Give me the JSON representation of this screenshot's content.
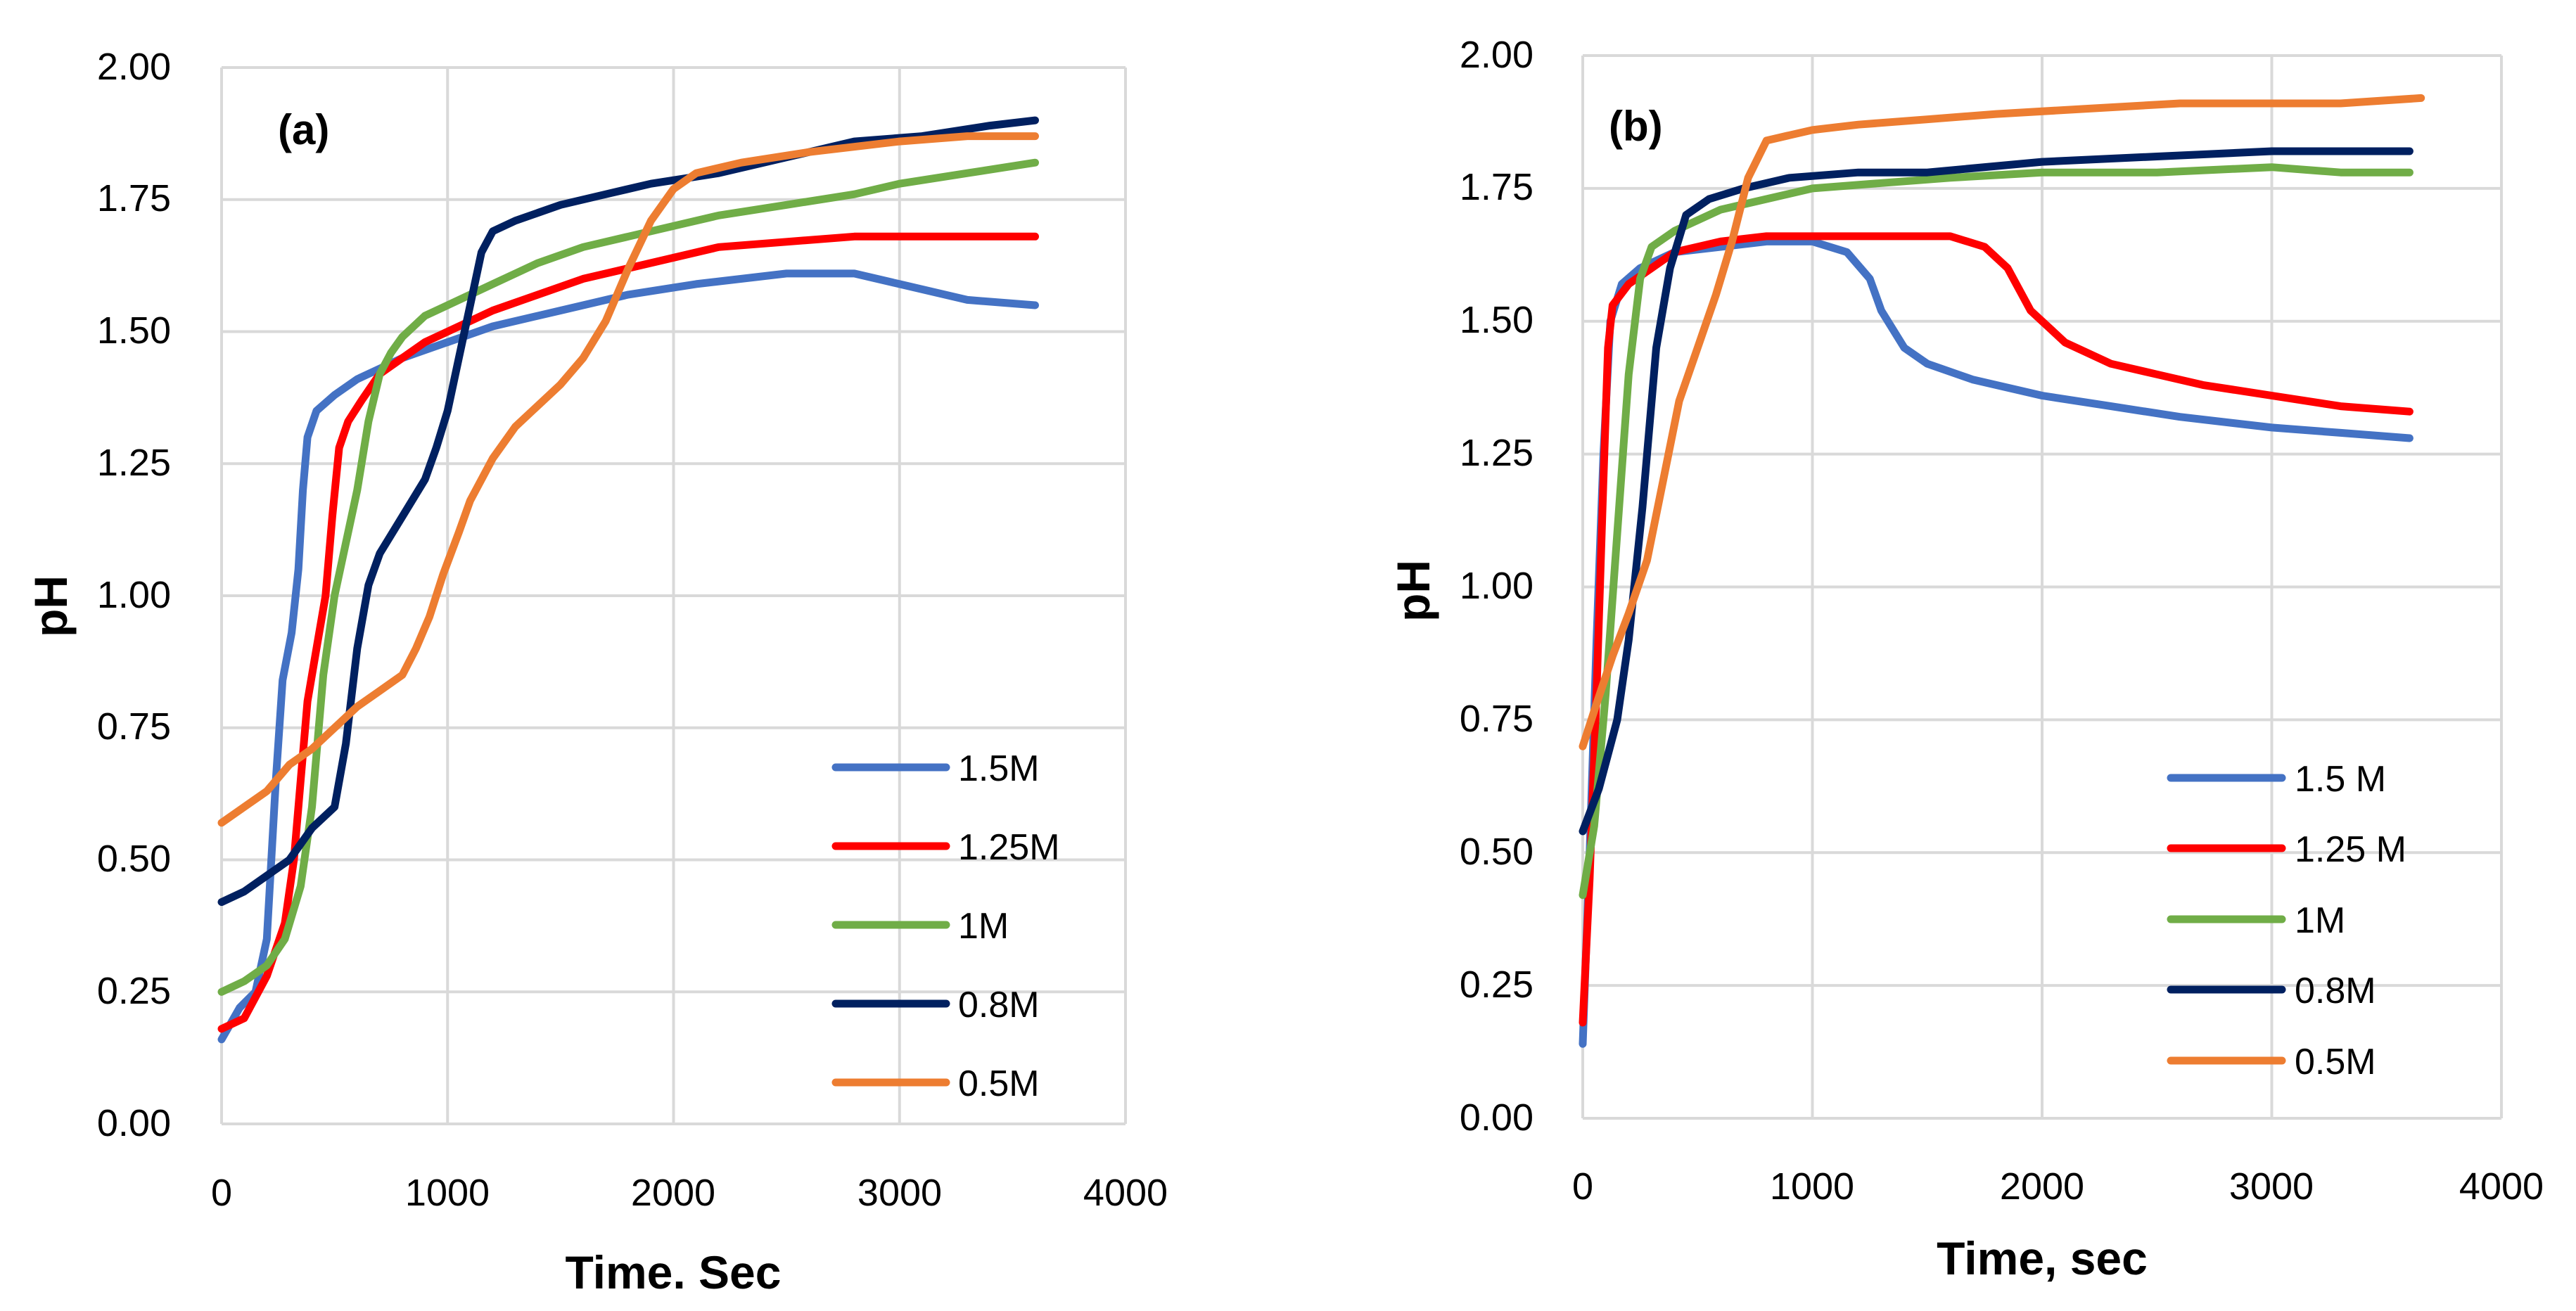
{
  "chart_data": [
    {
      "type": "line",
      "panel_label": "(a)",
      "xlabel": "Time. Sec",
      "ylabel": "pH",
      "xlim": [
        0,
        4000
      ],
      "ylim": [
        0,
        2
      ],
      "x_ticks": [
        "0",
        "1000",
        "2000",
        "3000",
        "4000"
      ],
      "y_ticks": [
        "0.00",
        "0.25",
        "0.50",
        "0.75",
        "1.00",
        "1.25",
        "1.50",
        "1.75",
        "2.00"
      ],
      "grid": true,
      "legend_position": "bottom-right",
      "series": [
        {
          "name": "1.5M",
          "color": "#4472c4",
          "points": [
            [
              0,
              0.16
            ],
            [
              80,
              0.22
            ],
            [
              150,
              0.25
            ],
            [
              200,
              0.35
            ],
            [
              240,
              0.65
            ],
            [
              270,
              0.84
            ],
            [
              310,
              0.93
            ],
            [
              340,
              1.05
            ],
            [
              360,
              1.2
            ],
            [
              380,
              1.3
            ],
            [
              420,
              1.35
            ],
            [
              500,
              1.38
            ],
            [
              600,
              1.41
            ],
            [
              700,
              1.43
            ],
            [
              800,
              1.45
            ],
            [
              1000,
              1.48
            ],
            [
              1200,
              1.51
            ],
            [
              1500,
              1.54
            ],
            [
              1800,
              1.57
            ],
            [
              2100,
              1.59
            ],
            [
              2500,
              1.61
            ],
            [
              2800,
              1.61
            ],
            [
              3000,
              1.59
            ],
            [
              3300,
              1.56
            ],
            [
              3600,
              1.55
            ]
          ]
        },
        {
          "name": "1.25M",
          "color": "#ff0000",
          "points": [
            [
              0,
              0.18
            ],
            [
              100,
              0.2
            ],
            [
              200,
              0.28
            ],
            [
              280,
              0.38
            ],
            [
              320,
              0.5
            ],
            [
              350,
              0.65
            ],
            [
              380,
              0.8
            ],
            [
              420,
              0.9
            ],
            [
              460,
              1.0
            ],
            [
              490,
              1.15
            ],
            [
              520,
              1.28
            ],
            [
              560,
              1.33
            ],
            [
              620,
              1.37
            ],
            [
              700,
              1.42
            ],
            [
              800,
              1.45
            ],
            [
              900,
              1.48
            ],
            [
              1000,
              1.5
            ],
            [
              1200,
              1.54
            ],
            [
              1400,
              1.57
            ],
            [
              1600,
              1.6
            ],
            [
              1800,
              1.62
            ],
            [
              2000,
              1.64
            ],
            [
              2200,
              1.66
            ],
            [
              2500,
              1.67
            ],
            [
              2800,
              1.68
            ],
            [
              3200,
              1.68
            ],
            [
              3600,
              1.68
            ]
          ]
        },
        {
          "name": "1M",
          "color": "#70ad47",
          "points": [
            [
              0,
              0.25
            ],
            [
              100,
              0.27
            ],
            [
              200,
              0.3
            ],
            [
              280,
              0.35
            ],
            [
              350,
              0.45
            ],
            [
              400,
              0.6
            ],
            [
              450,
              0.85
            ],
            [
              500,
              1.0
            ],
            [
              550,
              1.1
            ],
            [
              600,
              1.2
            ],
            [
              650,
              1.33
            ],
            [
              700,
              1.42
            ],
            [
              750,
              1.46
            ],
            [
              800,
              1.49
            ],
            [
              900,
              1.53
            ],
            [
              1000,
              1.55
            ],
            [
              1200,
              1.59
            ],
            [
              1400,
              1.63
            ],
            [
              1600,
              1.66
            ],
            [
              1800,
              1.68
            ],
            [
              2000,
              1.7
            ],
            [
              2200,
              1.72
            ],
            [
              2500,
              1.74
            ],
            [
              2800,
              1.76
            ],
            [
              3000,
              1.78
            ],
            [
              3300,
              1.8
            ],
            [
              3600,
              1.82
            ]
          ]
        },
        {
          "name": "0.8M",
          "color": "#002060",
          "points": [
            [
              0,
              0.42
            ],
            [
              100,
              0.44
            ],
            [
              200,
              0.47
            ],
            [
              300,
              0.5
            ],
            [
              400,
              0.56
            ],
            [
              500,
              0.6
            ],
            [
              550,
              0.72
            ],
            [
              600,
              0.9
            ],
            [
              650,
              1.02
            ],
            [
              700,
              1.08
            ],
            [
              800,
              1.15
            ],
            [
              900,
              1.22
            ],
            [
              950,
              1.28
            ],
            [
              1000,
              1.35
            ],
            [
              1050,
              1.45
            ],
            [
              1100,
              1.55
            ],
            [
              1150,
              1.65
            ],
            [
              1200,
              1.69
            ],
            [
              1300,
              1.71
            ],
            [
              1500,
              1.74
            ],
            [
              1700,
              1.76
            ],
            [
              1900,
              1.78
            ],
            [
              2200,
              1.8
            ],
            [
              2500,
              1.83
            ],
            [
              2800,
              1.86
            ],
            [
              3100,
              1.87
            ],
            [
              3400,
              1.89
            ],
            [
              3600,
              1.9
            ]
          ]
        },
        {
          "name": "0.5M",
          "color": "#ed7d31",
          "points": [
            [
              0,
              0.57
            ],
            [
              100,
              0.6
            ],
            [
              200,
              0.63
            ],
            [
              300,
              0.68
            ],
            [
              400,
              0.71
            ],
            [
              500,
              0.75
            ],
            [
              600,
              0.79
            ],
            [
              700,
              0.82
            ],
            [
              800,
              0.85
            ],
            [
              860,
              0.9
            ],
            [
              920,
              0.96
            ],
            [
              980,
              1.04
            ],
            [
              1050,
              1.12
            ],
            [
              1100,
              1.18
            ],
            [
              1200,
              1.26
            ],
            [
              1300,
              1.32
            ],
            [
              1400,
              1.36
            ],
            [
              1500,
              1.4
            ],
            [
              1600,
              1.45
            ],
            [
              1700,
              1.52
            ],
            [
              1800,
              1.62
            ],
            [
              1900,
              1.71
            ],
            [
              2000,
              1.77
            ],
            [
              2100,
              1.8
            ],
            [
              2300,
              1.82
            ],
            [
              2600,
              1.84
            ],
            [
              3000,
              1.86
            ],
            [
              3300,
              1.87
            ],
            [
              3600,
              1.87
            ]
          ]
        }
      ]
    },
    {
      "type": "line",
      "panel_label": "(b)",
      "xlabel": "Time, sec",
      "ylabel": "pH",
      "xlim": [
        0,
        4000
      ],
      "ylim": [
        0,
        2
      ],
      "x_ticks": [
        "0",
        "1000",
        "2000",
        "3000",
        "4000"
      ],
      "y_ticks": [
        "0.00",
        "0.25",
        "0.50",
        "0.75",
        "1.00",
        "1.25",
        "1.50",
        "1.75",
        "2.00"
      ],
      "grid": true,
      "legend_position": "bottom-right",
      "series": [
        {
          "name": "1.5 M",
          "color": "#4472c4",
          "points": [
            [
              0,
              0.14
            ],
            [
              30,
              0.5
            ],
            [
              60,
              0.9
            ],
            [
              90,
              1.25
            ],
            [
              120,
              1.5
            ],
            [
              170,
              1.57
            ],
            [
              250,
              1.6
            ],
            [
              400,
              1.63
            ],
            [
              600,
              1.64
            ],
            [
              800,
              1.65
            ],
            [
              1000,
              1.65
            ],
            [
              1150,
              1.63
            ],
            [
              1250,
              1.58
            ],
            [
              1300,
              1.52
            ],
            [
              1400,
              1.45
            ],
            [
              1500,
              1.42
            ],
            [
              1700,
              1.39
            ],
            [
              2000,
              1.36
            ],
            [
              2300,
              1.34
            ],
            [
              2600,
              1.32
            ],
            [
              3000,
              1.3
            ],
            [
              3300,
              1.29
            ],
            [
              3600,
              1.28
            ]
          ]
        },
        {
          "name": "1.25 M",
          "color": "#ff0000",
          "points": [
            [
              0,
              0.18
            ],
            [
              30,
              0.45
            ],
            [
              60,
              0.8
            ],
            [
              90,
              1.2
            ],
            [
              110,
              1.45
            ],
            [
              130,
              1.53
            ],
            [
              200,
              1.57
            ],
            [
              300,
              1.6
            ],
            [
              400,
              1.63
            ],
            [
              600,
              1.65
            ],
            [
              800,
              1.66
            ],
            [
              1000,
              1.66
            ],
            [
              1300,
              1.66
            ],
            [
              1600,
              1.66
            ],
            [
              1750,
              1.64
            ],
            [
              1850,
              1.6
            ],
            [
              1950,
              1.52
            ],
            [
              2100,
              1.46
            ],
            [
              2300,
              1.42
            ],
            [
              2500,
              1.4
            ],
            [
              2700,
              1.38
            ],
            [
              3000,
              1.36
            ],
            [
              3300,
              1.34
            ],
            [
              3600,
              1.33
            ]
          ]
        },
        {
          "name": "1M",
          "color": "#70ad47",
          "points": [
            [
              0,
              0.42
            ],
            [
              50,
              0.55
            ],
            [
              100,
              0.8
            ],
            [
              150,
              1.1
            ],
            [
              200,
              1.4
            ],
            [
              250,
              1.58
            ],
            [
              300,
              1.64
            ],
            [
              400,
              1.67
            ],
            [
              600,
              1.71
            ],
            [
              800,
              1.73
            ],
            [
              1000,
              1.75
            ],
            [
              1300,
              1.76
            ],
            [
              1600,
              1.77
            ],
            [
              2000,
              1.78
            ],
            [
              2500,
              1.78
            ],
            [
              3000,
              1.79
            ],
            [
              3300,
              1.78
            ],
            [
              3600,
              1.78
            ]
          ]
        },
        {
          "name": "0.8M",
          "color": "#002060",
          "points": [
            [
              0,
              0.54
            ],
            [
              70,
              0.62
            ],
            [
              150,
              0.75
            ],
            [
              200,
              0.9
            ],
            [
              260,
              1.15
            ],
            [
              320,
              1.45
            ],
            [
              380,
              1.6
            ],
            [
              450,
              1.7
            ],
            [
              550,
              1.73
            ],
            [
              700,
              1.75
            ],
            [
              900,
              1.77
            ],
            [
              1200,
              1.78
            ],
            [
              1500,
              1.78
            ],
            [
              2000,
              1.8
            ],
            [
              2500,
              1.81
            ],
            [
              3000,
              1.82
            ],
            [
              3600,
              1.82
            ]
          ]
        },
        {
          "name": "0.5M",
          "color": "#ed7d31",
          "points": [
            [
              0,
              0.7
            ],
            [
              60,
              0.78
            ],
            [
              130,
              0.87
            ],
            [
              200,
              0.95
            ],
            [
              280,
              1.05
            ],
            [
              350,
              1.2
            ],
            [
              420,
              1.35
            ],
            [
              500,
              1.45
            ],
            [
              580,
              1.55
            ],
            [
              650,
              1.65
            ],
            [
              720,
              1.77
            ],
            [
              800,
              1.84
            ],
            [
              900,
              1.85
            ],
            [
              1000,
              1.86
            ],
            [
              1200,
              1.87
            ],
            [
              1500,
              1.88
            ],
            [
              1800,
              1.89
            ],
            [
              2200,
              1.9
            ],
            [
              2600,
              1.91
            ],
            [
              3000,
              1.91
            ],
            [
              3300,
              1.91
            ],
            [
              3650,
              1.92
            ]
          ]
        }
      ]
    }
  ]
}
